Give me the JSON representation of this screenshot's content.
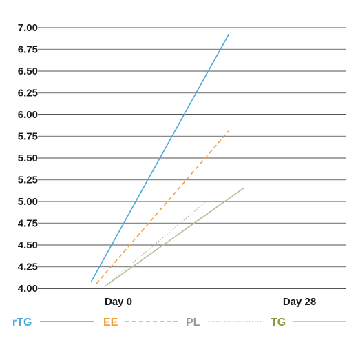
{
  "chart_data": {
    "type": "line",
    "title": "",
    "xlabel": "",
    "ylabel": "",
    "categories": [
      "Day 0",
      "Day 28"
    ],
    "yticks": [
      "7.00",
      "6.75",
      "6.50",
      "6.25",
      "6.00",
      "5.75",
      "5.50",
      "5.25",
      "5.00",
      "4.75",
      "4.50",
      "4.25",
      "4.00"
    ],
    "ylim": [
      4.0,
      7.0
    ],
    "grid": true,
    "legend": "bottom",
    "series": [
      {
        "name": "rTG",
        "color": "#4aa8d8",
        "dash": "solid",
        "values": [
          4.05,
          6.92
        ]
      },
      {
        "name": "EE",
        "color": "#f0a040",
        "dash": "dashed",
        "values": [
          4.05,
          5.81
        ]
      },
      {
        "name": "PL",
        "color": "#b0b0b0",
        "dash": "dotted",
        "values": [
          4.05,
          4.99
        ]
      },
      {
        "name": "TG",
        "color": "#bdb89a",
        "dash": "solid",
        "values": [
          4.05,
          5.16
        ]
      }
    ]
  }
}
